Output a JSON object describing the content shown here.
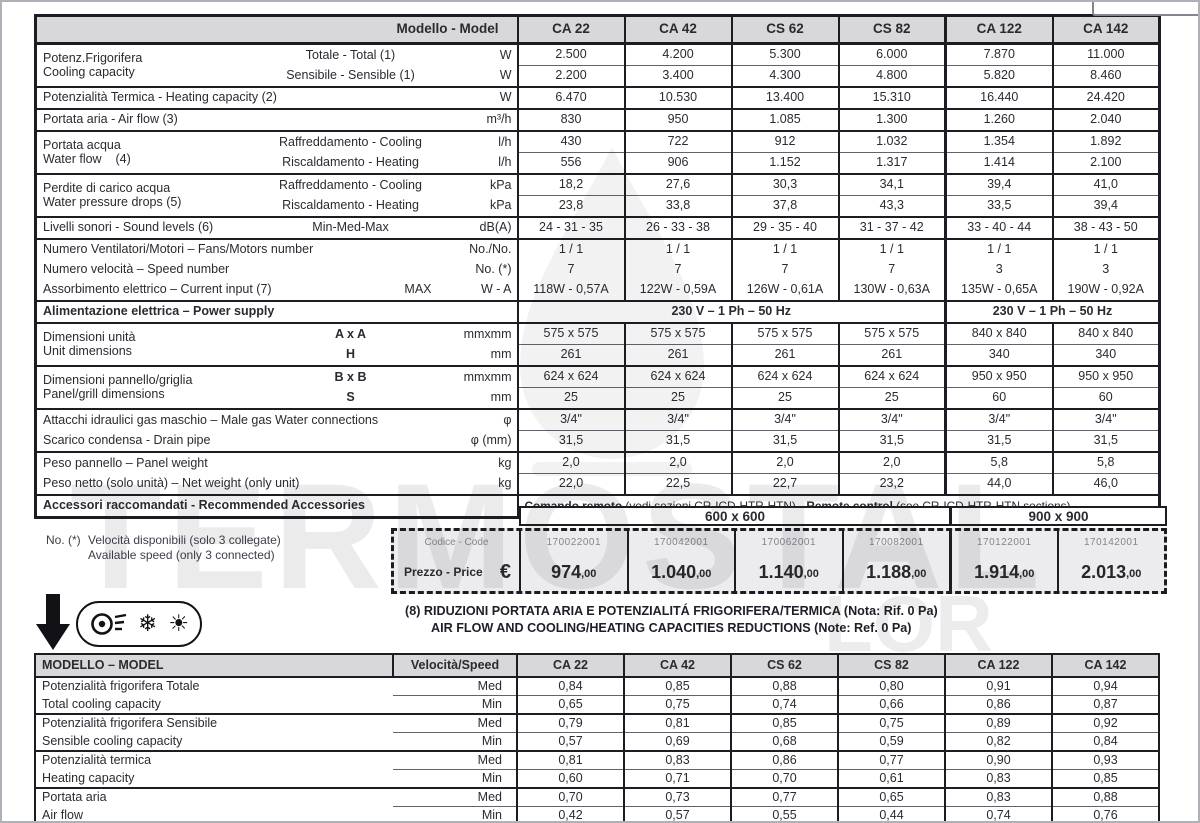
{
  "watermark": {
    "main": "TERMOSTAL",
    "fragment": "LOR"
  },
  "icons": {
    "snowflake": "❄",
    "sun": "☀"
  },
  "spec_table": {
    "header_label": "Modello  - Model",
    "models": [
      "CA 22",
      "CA 42",
      "CS 62",
      "CS 82",
      "CA 122",
      "CA 142"
    ],
    "groups": [
      {
        "label": {
          "it": "Potenz.Frigorifera",
          "en": "Cooling capacity"
        },
        "rows": [
          {
            "sub": "Totale - Total (1)",
            "unit": "W",
            "values": [
              "2.500",
              "4.200",
              "5.300",
              "6.000",
              "7.870",
              "11.000"
            ]
          },
          {
            "sub": "Sensibile - Sensible (1)",
            "unit": "W",
            "values": [
              "2.200",
              "3.400",
              "4.300",
              "4.800",
              "5.820",
              "8.460"
            ]
          }
        ]
      },
      {
        "rows": [
          {
            "label_full": "Potenzialità Termica - Heating capacity  (2)",
            "unit": "W",
            "values": [
              "6.470",
              "10.530",
              "13.400",
              "15.310",
              "16.440",
              "24.420"
            ]
          }
        ]
      },
      {
        "rows": [
          {
            "label_full": "Portata aria - Air flow  (3)",
            "unit": "m³/h",
            "values": [
              "830",
              "950",
              "1.085",
              "1.300",
              "1.260",
              "2.040"
            ]
          }
        ]
      },
      {
        "label": {
          "it": "Portata acqua",
          "en": "Water flow    (4)"
        },
        "rows": [
          {
            "sub": "Raffreddamento - Cooling",
            "unit": "l/h",
            "values": [
              "430",
              "722",
              "912",
              "1.032",
              "1.354",
              "1.892"
            ]
          },
          {
            "sub": "Riscaldamento - Heating",
            "unit": "l/h",
            "values": [
              "556",
              "906",
              "1.152",
              "1.317",
              "1.414",
              "2.100"
            ]
          }
        ]
      },
      {
        "label": {
          "it": "Perdite di carico acqua",
          "en": "Water pressure drops  (5)"
        },
        "rows": [
          {
            "sub": "Raffreddamento - Cooling",
            "unit": "kPa",
            "values": [
              "18,2",
              "27,6",
              "30,3",
              "34,1",
              "39,4",
              "41,0"
            ]
          },
          {
            "sub": "Riscaldamento - Heating",
            "unit": "kPa",
            "values": [
              "23,8",
              "33,8",
              "37,8",
              "43,3",
              "33,5",
              "39,4"
            ]
          }
        ]
      },
      {
        "label": {
          "it": "Livelli sonori - Sound levels  (6)"
        },
        "rows": [
          {
            "sub": "Min-Med-Max",
            "unit": "dB(A)",
            "values": [
              "24 - 31 - 35",
              "26 - 33 - 38",
              "29 - 35 - 40",
              "31 - 37 - 42",
              "33 - 40 - 44",
              "38 - 43 - 50"
            ]
          }
        ]
      },
      {
        "inner_lines": false,
        "rows": [
          {
            "label_full": "Numero Ventilatori/Motori – Fans/Motors number",
            "unit": "No./No.",
            "values": [
              "1 / 1",
              "1 / 1",
              "1 / 1",
              "1 / 1",
              "1 / 1",
              "1 / 1"
            ]
          },
          {
            "label_full": "Numero velocità – Speed number",
            "unit": "No. (*)",
            "values": [
              "7",
              "7",
              "7",
              "7",
              "3",
              "3"
            ]
          },
          {
            "label_full": "Assorbimento elettrico – Current input  (7)",
            "tail": "MAX",
            "unit": "W - A",
            "values": [
              "118W - 0,57A",
              "122W - 0,59A",
              "126W - 0,61A",
              "130W - 0,63A",
              "135W - 0,65A",
              "190W - 0,92A"
            ]
          }
        ]
      },
      {
        "rows": [
          {
            "label_full": "Alimentazione elettrica – Power supply",
            "bold": true,
            "spans": [
              {
                "text": "230 V – 1 Ph – 50 Hz",
                "span": 4
              },
              {
                "text": "230 V – 1 Ph – 50 Hz",
                "span": 2
              }
            ]
          }
        ]
      },
      {
        "label": {
          "it": "Dimensioni unità",
          "en": "Unit dimensions"
        },
        "rows": [
          {
            "sub": "A x A",
            "sub_bold": true,
            "unit": "mmxmm",
            "values": [
              "575 x 575",
              "575 x 575",
              "575 x 575",
              "575 x 575",
              "840 x 840",
              "840 x 840"
            ]
          },
          {
            "sub": "H",
            "sub_bold": true,
            "unit": "mm",
            "values": [
              "261",
              "261",
              "261",
              "261",
              "340",
              "340"
            ]
          }
        ]
      },
      {
        "label": {
          "it": "Dimensioni pannello/griglia",
          "en": "Panel/grill dimensions"
        },
        "rows": [
          {
            "sub": "B x B",
            "sub_bold": true,
            "unit": "mmxmm",
            "values": [
              "624 x 624",
              "624 x 624",
              "624 x 624",
              "624 x 624",
              "950 x 950",
              "950 x 950"
            ]
          },
          {
            "sub": "S",
            "sub_bold": true,
            "unit": "mm",
            "values": [
              "25",
              "25",
              "25",
              "25",
              "60",
              "60"
            ]
          }
        ]
      },
      {
        "rows": [
          {
            "label_full": "Attacchi idraulici gas maschio – Male gas Water connections",
            "unit": "φ",
            "values": [
              "3/4\"",
              "3/4\"",
              "3/4\"",
              "3/4\"",
              "3/4\"",
              "3/4\""
            ]
          },
          {
            "label_full": "Scarico condensa - Drain pipe",
            "unit": "φ (mm)",
            "values": [
              "31,5",
              "31,5",
              "31,5",
              "31,5",
              "31,5",
              "31,5"
            ]
          }
        ]
      },
      {
        "rows": [
          {
            "label_full": "Peso pannello – Panel weight",
            "unit": "kg",
            "values": [
              "2,0",
              "2,0",
              "2,0",
              "2,0",
              "5,8",
              "5,8"
            ]
          },
          {
            "label_full": "Peso netto (solo unità) – Net weight (only unit)",
            "unit": "kg",
            "values": [
              "22,0",
              "22,5",
              "22,7",
              "23,2",
              "44,0",
              "46,0"
            ]
          }
        ]
      },
      {
        "rows": [
          {
            "label_full": "Accessori raccomandati - Recommended Accessories",
            "bold": true,
            "rich": [
              {
                "b": true,
                "t": "Comando remoto"
              },
              {
                "b": false,
                "t": " (vedi sezioni CR-ICD-HTR-HTN)  -  "
              },
              {
                "b": true,
                "t": "Remote control"
              },
              {
                "b": false,
                "t": " (see CR-ICD-HTR-HTN sections)"
              }
            ]
          }
        ]
      }
    ]
  },
  "size_row": {
    "groups": [
      {
        "label": "600 x 600",
        "span": 4
      },
      {
        "label": "900 x 900",
        "span": 2
      }
    ]
  },
  "price_box": {
    "code_label": "Codice - Code",
    "codes": [
      "170022001",
      "170042001",
      "170062001",
      "170082001",
      "170122001",
      "170142001"
    ],
    "price_label": "Prezzo - Price",
    "currency": "€",
    "prices": [
      {
        "int": "974",
        "dec": "00"
      },
      {
        "int": "1.040",
        "dec": "00"
      },
      {
        "int": "1.140",
        "dec": "00"
      },
      {
        "int": "1.188",
        "dec": "00"
      },
      {
        "int": "1.914",
        "dec": "00"
      },
      {
        "int": "2.013",
        "dec": "00"
      }
    ]
  },
  "speed_note": {
    "prefix": "No. (*)",
    "line1": "Velocità disponibili (solo 3 collegate)",
    "line2": "Available speed (only 3 connected)"
  },
  "reductions": {
    "heading_line1": "(8)  RIDUZIONI PORTATA ARIA E  POTENZIALITÁ FRIGORIFERA/TERMICA (Nota: Rif. 0 Pa)",
    "heading_line2": "AIR FLOW AND COOLING/HEATING CAPACITIES REDUCTIONS (Note: Ref. 0 Pa)",
    "table": {
      "header": {
        "model": "MODELLO – MODEL",
        "speed": "Velocità/Speed"
      },
      "models": [
        "CA 22",
        "CA 42",
        "CS 62",
        "CS 82",
        "CA 122",
        "CA 142"
      ],
      "rows": [
        {
          "label": "Potenzialità frigorifera Totale",
          "speed": "Med",
          "values": [
            "0,84",
            "0,85",
            "0,88",
            "0,80",
            "0,91",
            "0,94"
          ]
        },
        {
          "label": "Total cooling capacity",
          "speed": "Min",
          "values": [
            "0,65",
            "0,75",
            "0,74",
            "0,66",
            "0,86",
            "0,87"
          ]
        },
        {
          "label": "Potenzialità frigorifera Sensibile",
          "speed": "Med",
          "values": [
            "0,79",
            "0,81",
            "0,85",
            "0,75",
            "0,89",
            "0,92"
          ]
        },
        {
          "label": "Sensible cooling capacity",
          "speed": "Min",
          "values": [
            "0,57",
            "0,69",
            "0,68",
            "0,59",
            "0,82",
            "0,84"
          ]
        },
        {
          "label": "Potenzialità  termica",
          "speed": "Med",
          "values": [
            "0,81",
            "0,83",
            "0,86",
            "0,77",
            "0,90",
            "0,93"
          ]
        },
        {
          "label": "Heating capacity",
          "speed": "Min",
          "values": [
            "0,60",
            "0,71",
            "0,70",
            "0,61",
            "0,83",
            "0,85"
          ]
        },
        {
          "label": "Portata aria",
          "speed": "Med",
          "values": [
            "0,70",
            "0,73",
            "0,77",
            "0,65",
            "0,83",
            "0,88"
          ]
        },
        {
          "label": "Air flow",
          "speed": "Min",
          "values": [
            "0,42",
            "0,57",
            "0,55",
            "0,44",
            "0,74",
            "0,76"
          ]
        }
      ]
    }
  }
}
